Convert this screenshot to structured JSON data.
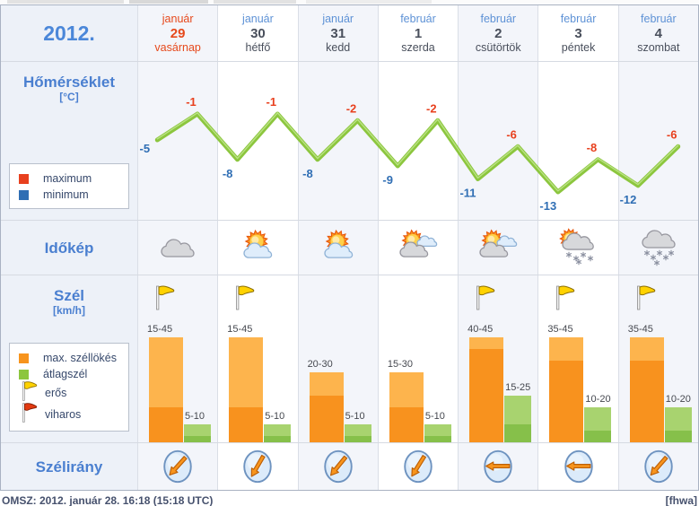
{
  "header": {
    "year": "2012."
  },
  "days": [
    {
      "month": "január",
      "day": "29",
      "weekday": "vasárnap",
      "today": true,
      "weather_icon": "cloudy",
      "wind_direction_deg": 222
    },
    {
      "month": "január",
      "day": "30",
      "weekday": "hétfő",
      "today": false,
      "weather_icon": "sun-cloud",
      "wind_direction_deg": 210
    },
    {
      "month": "január",
      "day": "31",
      "weekday": "kedd",
      "today": false,
      "weather_icon": "sun-cloud",
      "wind_direction_deg": 219
    },
    {
      "month": "február",
      "day": "1",
      "weekday": "szerda",
      "today": false,
      "weather_icon": "sun-clouds",
      "wind_direction_deg": 212
    },
    {
      "month": "február",
      "day": "2",
      "weekday": "csütörtök",
      "today": false,
      "weather_icon": "sun-clouds",
      "wind_direction_deg": 270
    },
    {
      "month": "február",
      "day": "3",
      "weekday": "péntek",
      "today": false,
      "weather_icon": "sun-snow",
      "wind_direction_deg": 270
    },
    {
      "month": "február",
      "day": "4",
      "weekday": "szombat",
      "today": false,
      "weather_icon": "snow",
      "wind_direction_deg": 221
    }
  ],
  "rows": {
    "temperature": {
      "title": "Hőmérséklet",
      "unit": "[°C]",
      "legend_max": "maximum",
      "legend_min": "minimum"
    },
    "weather": {
      "title": "Időkép"
    },
    "wind": {
      "title": "Szél",
      "unit": "[km/h]",
      "legend_gust": "max. széllökés",
      "legend_avg": "átlagszél",
      "legend_strong": "erős",
      "legend_storm": "viharos"
    },
    "direction": {
      "title": "Szélirány"
    }
  },
  "chart_data": [
    {
      "name": "temperature",
      "type": "line",
      "title": "Hőmérséklet [°C]",
      "categories": [
        "január 29",
        "január 30",
        "január 31",
        "február 1",
        "február 2",
        "február 3",
        "február 4"
      ],
      "series": [
        {
          "name": "maximum",
          "values": [
            -1,
            -1,
            -2,
            -2,
            -6,
            -8,
            -6
          ]
        },
        {
          "name": "minimum",
          "values": [
            -5,
            -8,
            -8,
            -9,
            -11,
            -13,
            -12
          ]
        }
      ],
      "ylim": [
        -14,
        0
      ],
      "line_color": "#8cc63e",
      "max_label_color": "#e8401e",
      "min_label_color": "#2f6eb4"
    },
    {
      "name": "wind",
      "type": "bar",
      "title": "Szél [km/h]",
      "categories": [
        "január 29",
        "január 30",
        "január 31",
        "február 1",
        "február 2",
        "február 3",
        "február 4"
      ],
      "series": [
        {
          "name": "max. széllökés",
          "color_light": "#fdb44d",
          "color_dark": "#f8921e",
          "ranges": [
            [
              15,
              45
            ],
            [
              15,
              45
            ],
            [
              20,
              30
            ],
            [
              15,
              30
            ],
            [
              40,
              45
            ],
            [
              35,
              45
            ],
            [
              35,
              45
            ]
          ]
        },
        {
          "name": "átlagszél",
          "color_light": "#a8d36f",
          "color_dark": "#86c04a",
          "ranges": [
            [
              5,
              10
            ],
            [
              5,
              10
            ],
            [
              5,
              10
            ],
            [
              5,
              10
            ],
            [
              15,
              25
            ],
            [
              10,
              20
            ],
            [
              10,
              20
            ]
          ]
        }
      ],
      "strong_wind_flag": [
        true,
        true,
        false,
        false,
        true,
        true,
        true
      ]
    }
  ],
  "footer": {
    "left": "OMSZ: 2012. január 28. 16:18 (15:18  UTC)",
    "right": "[fhwa]"
  }
}
